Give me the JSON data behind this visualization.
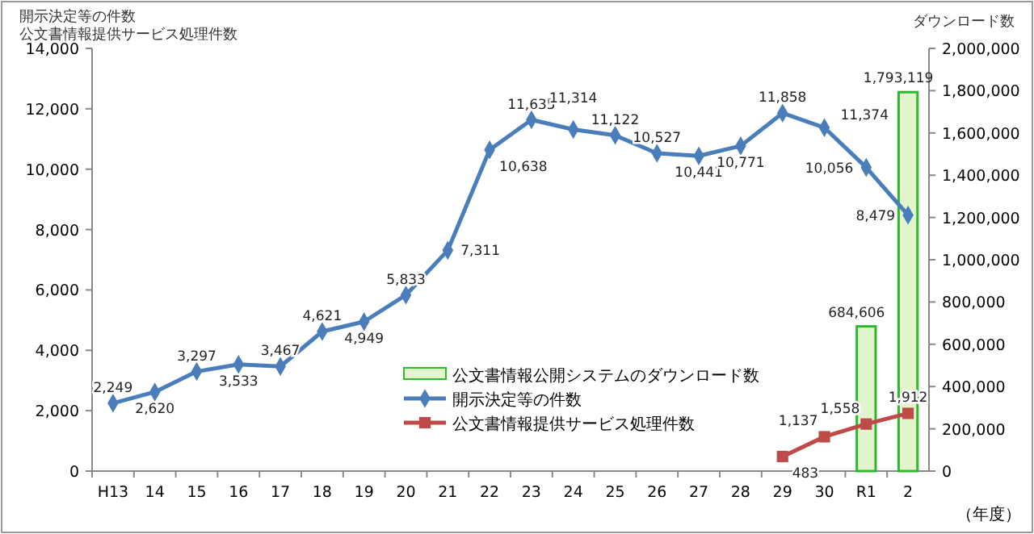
{
  "chart_data": {
    "type": "line",
    "ylabel": "開示決定等の件数",
    "annotations": [
      "公文書情報提供サービス処理件数"
    ],
    "y2label": "ダウンロード数",
    "xlabel": "（年度）",
    "categories": [
      "H13",
      "14",
      "15",
      "16",
      "17",
      "18",
      "19",
      "20",
      "21",
      "22",
      "23",
      "24",
      "25",
      "26",
      "27",
      "28",
      "29",
      "30",
      "R1",
      "2"
    ],
    "series": [
      {
        "name": "公文書情報公開システムのダウンロード数",
        "type": "bar",
        "axis": "y2",
        "color": "#e2f5cc",
        "values": [
          null,
          null,
          null,
          null,
          null,
          null,
          null,
          null,
          null,
          null,
          null,
          null,
          null,
          null,
          null,
          null,
          null,
          null,
          684606,
          1793119
        ],
        "value_labels": [
          null,
          null,
          null,
          null,
          null,
          null,
          null,
          null,
          null,
          null,
          null,
          null,
          null,
          null,
          null,
          null,
          null,
          null,
          "684,606",
          "1,793,119"
        ]
      },
      {
        "name": "開示決定等の件数",
        "marker": "diamond",
        "color": "#4a7ebb",
        "values": [
          2249,
          2620,
          3297,
          3533,
          3467,
          4621,
          4949,
          5833,
          7311,
          10638,
          11635,
          11314,
          11122,
          10527,
          10441,
          10771,
          11858,
          11374,
          10056,
          8479
        ],
        "value_labels": [
          "2,249",
          "2,620",
          "3,297",
          "3,533",
          "3,467",
          "4,621",
          "4,949",
          "5,833",
          "7,311",
          "10,638",
          "11,635",
          "11,314",
          "11,122",
          "10,527",
          "10,441",
          "10,771",
          "11,858",
          "11,374",
          "10,056",
          "8,479"
        ]
      },
      {
        "name": "公文書情報提供サービス処理件数",
        "marker": "square",
        "color": "#be4b48",
        "values": [
          null,
          null,
          null,
          null,
          null,
          null,
          null,
          null,
          null,
          null,
          null,
          null,
          null,
          null,
          null,
          null,
          483,
          1137,
          1558,
          1912
        ],
        "value_labels": [
          null,
          null,
          null,
          null,
          null,
          null,
          null,
          null,
          null,
          null,
          null,
          null,
          null,
          null,
          null,
          null,
          "483",
          "1,137",
          "1,558",
          "1,912"
        ]
      }
    ],
    "ylim": [
      0,
      14000
    ],
    "yticks": [
      {
        "value": 0,
        "label": "0"
      },
      {
        "value": 2000,
        "label": "2,000"
      },
      {
        "value": 4000,
        "label": "4,000"
      },
      {
        "value": 6000,
        "label": "6,000"
      },
      {
        "value": 8000,
        "label": "8,000"
      },
      {
        "value": 10000,
        "label": "10,000"
      },
      {
        "value": 12000,
        "label": "12,000"
      },
      {
        "value": 14000,
        "label": "14,000"
      }
    ],
    "y2lim": [
      0,
      2000000
    ],
    "y2ticks": [
      {
        "value": 0,
        "label": "0"
      },
      {
        "value": 200000,
        "label": "200,000"
      },
      {
        "value": 400000,
        "label": "400,000"
      },
      {
        "value": 600000,
        "label": "600,000"
      },
      {
        "value": 800000,
        "label": "800,000"
      },
      {
        "value": 1000000,
        "label": "1,000,000"
      },
      {
        "value": 1200000,
        "label": "1,200,000"
      },
      {
        "value": 1400000,
        "label": "1,400,000"
      },
      {
        "value": 1600000,
        "label": "1,600,000"
      },
      {
        "value": 1800000,
        "label": "1,800,000"
      },
      {
        "value": 2000000,
        "label": "2,000,000"
      }
    ],
    "legend": "bottom right",
    "grid": false
  }
}
